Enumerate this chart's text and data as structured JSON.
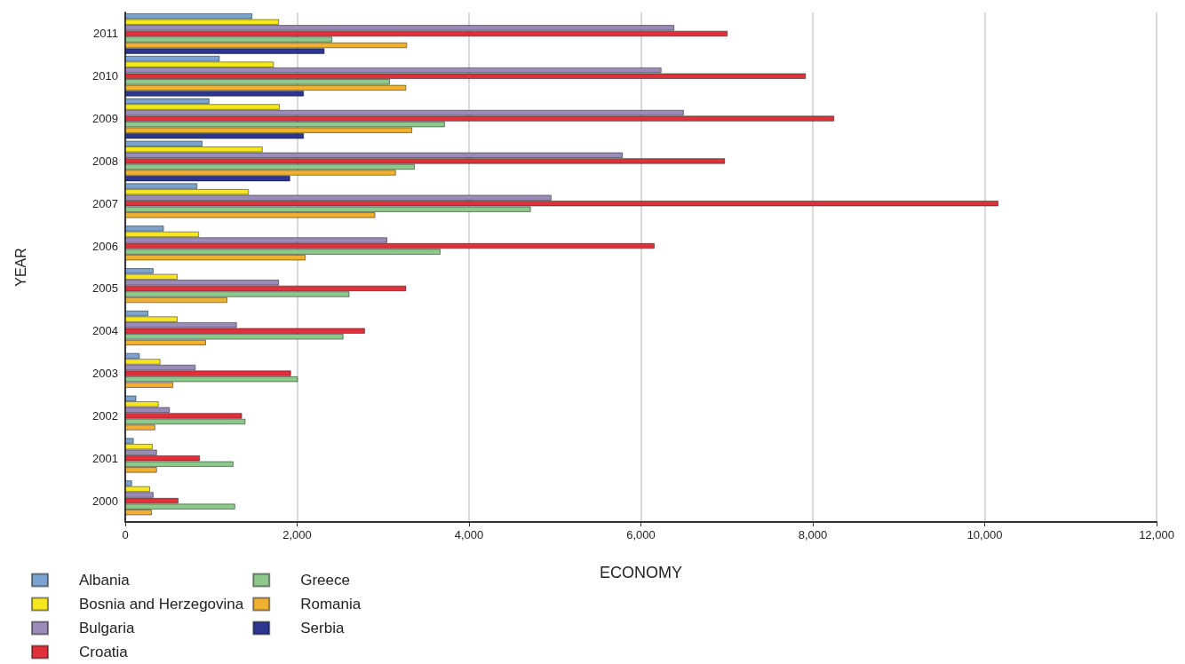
{
  "chart_data": {
    "type": "bar",
    "orientation": "horizontal",
    "xlabel": "ECONOMY",
    "ylabel": "YEAR",
    "categories": [
      "2011",
      "2010",
      "2009",
      "2008",
      "2007",
      "2006",
      "2005",
      "2004",
      "2003",
      "2002",
      "2001",
      "2000"
    ],
    "series": [
      {
        "name": "Albania",
        "color": "#7ba3d0",
        "values": [
          1480,
          1100,
          980,
          900,
          840,
          450,
          330,
          270,
          170,
          130,
          100,
          80
        ]
      },
      {
        "name": "Bosnia and Herzegovina",
        "color": "#f5e61e",
        "values": [
          1790,
          1730,
          1800,
          1600,
          1440,
          860,
          610,
          610,
          410,
          390,
          320,
          290
        ]
      },
      {
        "name": "Bulgaria",
        "color": "#9b8bb8",
        "values": [
          6390,
          6240,
          6500,
          5790,
          4960,
          3050,
          1790,
          1300,
          820,
          520,
          370,
          330
        ]
      },
      {
        "name": "Croatia",
        "color": "#e0303a",
        "values": [
          7010,
          7920,
          8250,
          6980,
          10160,
          6160,
          3270,
          2790,
          1930,
          1360,
          870,
          620
        ]
      },
      {
        "name": "Greece",
        "color": "#8cc98a",
        "values": [
          2410,
          3080,
          3720,
          3370,
          4720,
          3670,
          2610,
          2540,
          2010,
          1400,
          1260,
          1280
        ]
      },
      {
        "name": "Romania",
        "color": "#f0b030",
        "values": [
          3280,
          3270,
          3340,
          3150,
          2910,
          2100,
          1190,
          940,
          560,
          350,
          370,
          310
        ]
      },
      {
        "name": "Serbia",
        "color": "#2c3590",
        "values": [
          2320,
          2080,
          2080,
          1920,
          null,
          null,
          null,
          null,
          null,
          null,
          null,
          null
        ]
      }
    ],
    "xlim": [
      0,
      12000
    ],
    "xticks": [
      {
        "value": 0,
        "label": "0"
      },
      {
        "value": 2000,
        "label": "2,000"
      },
      {
        "value": 4000,
        "label": "4,000"
      },
      {
        "value": 6000,
        "label": "6,000"
      },
      {
        "value": 8000,
        "label": "8,000"
      },
      {
        "value": 10000,
        "label": "10,000"
      },
      {
        "value": 12000,
        "label": "12,000"
      }
    ],
    "grid": "x",
    "legend": "bottom left"
  }
}
